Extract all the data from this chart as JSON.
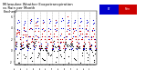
{
  "title": "Milwaukee Weather Evapotranspiration\nvs Rain per Month\n(Inches)",
  "title_fontsize": 2.8,
  "background_color": "#ffffff",
  "legend_labels": [
    "ET",
    "Rain"
  ],
  "legend_colors": [
    "#0000cc",
    "#cc0000"
  ],
  "years": [
    1995,
    1996,
    1997,
    1998,
    1999,
    2000,
    2001,
    2002,
    2003,
    2004,
    2005,
    2006,
    2007
  ],
  "months_per_year": 12,
  "ylim": [
    -2.5,
    7.0
  ],
  "yticks": [
    -2,
    0,
    2,
    4,
    6
  ],
  "ytick_labels": [
    "-2",
    "0",
    "2",
    "4",
    "6"
  ],
  "et_data": [
    [
      0.3,
      0.5,
      1.2,
      2.5,
      3.8,
      4.9,
      5.5,
      5.1,
      3.7,
      2.1,
      0.8,
      0.3
    ],
    [
      0.3,
      0.4,
      1.1,
      2.3,
      3.6,
      4.7,
      5.3,
      4.9,
      3.5,
      1.9,
      0.7,
      0.2
    ],
    [
      0.2,
      0.5,
      1.3,
      2.6,
      3.9,
      5.0,
      5.6,
      5.2,
      3.8,
      2.2,
      0.9,
      0.3
    ],
    [
      0.3,
      0.6,
      1.4,
      2.7,
      4.0,
      5.1,
      5.7,
      5.3,
      3.9,
      2.3,
      1.0,
      0.4
    ],
    [
      0.3,
      0.5,
      1.2,
      2.5,
      3.8,
      4.9,
      5.5,
      5.1,
      3.7,
      2.1,
      0.8,
      0.3
    ],
    [
      0.4,
      0.6,
      1.3,
      2.6,
      3.9,
      5.0,
      5.6,
      5.2,
      3.8,
      2.2,
      0.9,
      0.3
    ],
    [
      0.3,
      0.5,
      1.2,
      2.5,
      3.8,
      4.9,
      5.5,
      5.1,
      3.7,
      2.1,
      0.8,
      0.3
    ],
    [
      0.4,
      0.6,
      1.4,
      2.7,
      4.0,
      5.2,
      5.8,
      5.4,
      4.0,
      2.4,
      1.0,
      0.4
    ],
    [
      0.3,
      0.5,
      1.2,
      2.5,
      3.8,
      4.9,
      5.5,
      5.1,
      3.7,
      2.1,
      0.8,
      0.3
    ],
    [
      0.3,
      0.5,
      1.2,
      2.5,
      3.8,
      4.9,
      5.5,
      5.1,
      3.7,
      2.1,
      0.8,
      0.3
    ],
    [
      0.4,
      0.6,
      1.4,
      2.7,
      4.0,
      5.1,
      5.7,
      5.3,
      3.9,
      2.3,
      0.9,
      0.3
    ],
    [
      0.3,
      0.5,
      1.2,
      2.5,
      3.8,
      4.9,
      5.5,
      5.1,
      3.7,
      2.1,
      0.8,
      0.3
    ],
    [
      0.3,
      0.5,
      1.1,
      2.4,
      3.7,
      4.8,
      5.4,
      5.0,
      3.6,
      2.0,
      0.8,
      0.3
    ]
  ],
  "rain_data": [
    [
      1.2,
      1.5,
      2.8,
      3.2,
      3.1,
      3.6,
      3.4,
      3.0,
      3.3,
      2.4,
      2.1,
      1.4
    ],
    [
      1.0,
      0.9,
      1.5,
      2.8,
      4.2,
      4.0,
      2.8,
      3.5,
      2.5,
      2.8,
      1.8,
      1.2
    ],
    [
      0.8,
      1.2,
      2.5,
      3.8,
      2.5,
      5.5,
      1.5,
      4.0,
      2.0,
      1.8,
      2.5,
      1.0
    ],
    [
      1.5,
      2.0,
      3.5,
      4.5,
      5.0,
      2.0,
      4.5,
      2.5,
      3.5,
      1.5,
      0.5,
      0.8
    ],
    [
      0.5,
      1.0,
      2.0,
      3.0,
      2.5,
      5.0,
      4.0,
      3.5,
      2.0,
      2.5,
      1.5,
      0.5
    ],
    [
      0.5,
      0.5,
      1.0,
      2.0,
      3.5,
      2.5,
      2.0,
      1.5,
      3.0,
      1.5,
      1.0,
      0.5
    ],
    [
      1.0,
      1.5,
      3.0,
      2.5,
      4.5,
      5.5,
      3.5,
      4.0,
      2.5,
      2.0,
      1.5,
      1.0
    ],
    [
      0.5,
      0.8,
      1.5,
      2.0,
      3.0,
      1.5,
      2.0,
      0.5,
      1.5,
      1.0,
      0.8,
      0.5
    ],
    [
      1.5,
      2.0,
      2.5,
      3.5,
      4.5,
      6.0,
      4.5,
      3.0,
      4.0,
      3.0,
      2.0,
      1.5
    ],
    [
      1.2,
      1.8,
      2.2,
      3.2,
      4.0,
      3.5,
      4.0,
      2.5,
      2.0,
      2.5,
      1.5,
      1.0
    ],
    [
      0.8,
      1.2,
      2.0,
      3.5,
      4.5,
      3.0,
      3.5,
      2.0,
      3.0,
      2.0,
      1.0,
      0.8
    ],
    [
      1.0,
      1.5,
      2.5,
      3.0,
      4.0,
      4.5,
      3.0,
      3.5,
      2.5,
      1.5,
      1.2,
      0.8
    ],
    [
      0.8,
      1.0,
      2.0,
      2.5,
      3.5,
      4.0,
      2.5,
      3.0,
      2.0,
      1.5,
      1.0,
      0.5
    ]
  ]
}
